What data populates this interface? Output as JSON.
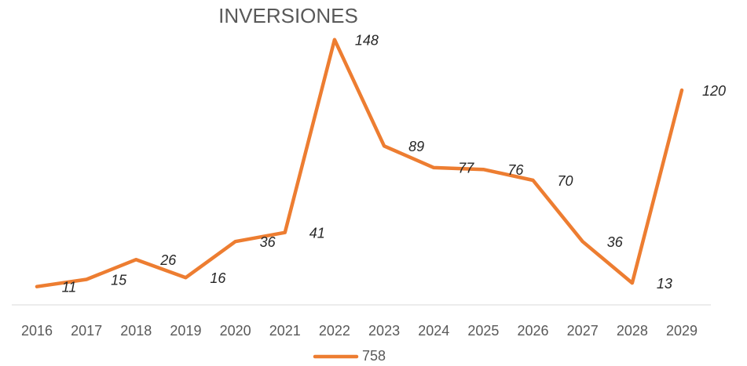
{
  "chart_data": {
    "type": "line",
    "title": "INVERSIONES",
    "categories": [
      "2016",
      "2017",
      "2018",
      "2019",
      "2020",
      "2021",
      "2022",
      "2023",
      "2024",
      "2025",
      "2026",
      "2027",
      "2028",
      "2029"
    ],
    "series": [
      {
        "name": "758",
        "color": "#ed7d31",
        "values": [
          11,
          15,
          26,
          16,
          36,
          41,
          148,
          89,
          77,
          76,
          70,
          36,
          13,
          120
        ]
      }
    ],
    "ylim": [
      0,
      150
    ],
    "legend": "bottom",
    "grid": false
  }
}
